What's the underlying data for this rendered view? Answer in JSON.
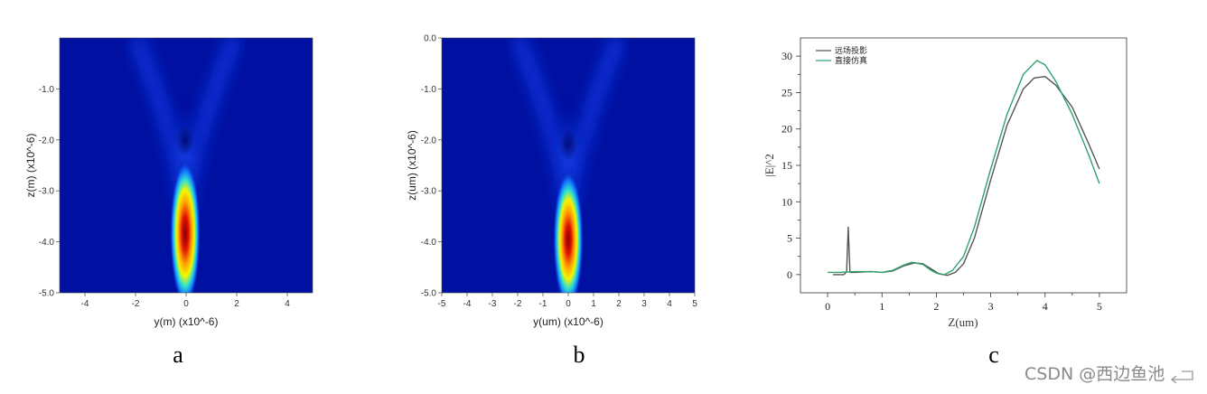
{
  "chart_data": [
    {
      "type": "heatmap",
      "panel_label": "a",
      "xlabel": "y(m) (x10^-6)",
      "ylabel": "z(m) (x10^-6)",
      "xlim": [
        -5,
        5
      ],
      "ylim": [
        -5,
        0
      ],
      "x_ticks": [
        "-4",
        "-2",
        "0",
        "2",
        "4"
      ],
      "y_ticks": [
        "-1.0",
        "-2.0",
        "-3.0",
        "-4.0",
        "-5.0"
      ],
      "colormap": "jet",
      "hotspot": {
        "y": 0.0,
        "z": -3.8,
        "peak": 1.0
      },
      "features": [
        {
          "name": "dark-lobe",
          "y": 0.0,
          "z": -2.0
        },
        {
          "name": "side-fringe-left",
          "y": -2.0,
          "z": -0.5
        },
        {
          "name": "side-fringe-right",
          "y": 2.0,
          "z": -0.5
        }
      ]
    },
    {
      "type": "heatmap",
      "panel_label": "b",
      "xlabel": "y(um) (x10^-6)",
      "ylabel": "z(um) (x10^-6)",
      "xlim": [
        -5,
        5
      ],
      "ylim": [
        -5,
        0
      ],
      "x_ticks": [
        "-5",
        "-4",
        "-3",
        "-2",
        "-1",
        "0",
        "1",
        "2",
        "3",
        "4",
        "5"
      ],
      "y_ticks": [
        "0.0",
        "-1.0",
        "-2.0",
        "-3.0",
        "-4.0",
        "-5.0"
      ],
      "colormap": "jet",
      "hotspot": {
        "y": 0.0,
        "z": -4.0,
        "peak": 1.0
      },
      "features": [
        {
          "name": "dark-lobe",
          "y": 0.0,
          "z": -2.1
        },
        {
          "name": "side-fringe-left",
          "y": -2.0,
          "z": -0.5
        },
        {
          "name": "side-fringe-right",
          "y": 2.0,
          "z": -0.5
        }
      ]
    },
    {
      "type": "line",
      "panel_label": "c",
      "xlabel": "Z(um)",
      "ylabel": "|E|^2",
      "xlim": [
        -0.5,
        5.5
      ],
      "ylim": [
        -2.5,
        32.5
      ],
      "x_ticks": [
        "0",
        "1",
        "2",
        "3",
        "4",
        "5"
      ],
      "y_ticks": [
        "0",
        "5",
        "10",
        "15",
        "20",
        "25",
        "30"
      ],
      "legend_position": "top-left",
      "series": [
        {
          "name": "远场投影",
          "color": "#555555",
          "points": [
            [
              0.1,
              0
            ],
            [
              0.3,
              0
            ],
            [
              0.35,
              0.4
            ],
            [
              0.38,
              6.5
            ],
            [
              0.41,
              0.3
            ],
            [
              0.5,
              0.3
            ],
            [
              0.8,
              0.4
            ],
            [
              1.0,
              0.3
            ],
            [
              1.2,
              0.5
            ],
            [
              1.4,
              1.2
            ],
            [
              1.6,
              1.6
            ],
            [
              1.75,
              1.5
            ],
            [
              1.9,
              0.8
            ],
            [
              2.05,
              0.1
            ],
            [
              2.2,
              -0.1
            ],
            [
              2.35,
              0.3
            ],
            [
              2.5,
              1.5
            ],
            [
              2.7,
              5
            ],
            [
              3.0,
              13
            ],
            [
              3.3,
              20.5
            ],
            [
              3.6,
              25.5
            ],
            [
              3.8,
              27
            ],
            [
              4.0,
              27.2
            ],
            [
              4.2,
              26
            ],
            [
              4.5,
              23
            ],
            [
              4.8,
              18
            ],
            [
              5.0,
              14.5
            ]
          ]
        },
        {
          "name": "直接仿真",
          "color": "#2ea36b",
          "points": [
            [
              0.0,
              0.3
            ],
            [
              0.2,
              0.3
            ],
            [
              0.5,
              0.4
            ],
            [
              0.8,
              0.4
            ],
            [
              1.0,
              0.3
            ],
            [
              1.2,
              0.6
            ],
            [
              1.4,
              1.3
            ],
            [
              1.55,
              1.7
            ],
            [
              1.75,
              1.4
            ],
            [
              1.9,
              0.6
            ],
            [
              2.0,
              0.2
            ],
            [
              2.15,
              0.0
            ],
            [
              2.3,
              0.6
            ],
            [
              2.5,
              2.5
            ],
            [
              2.7,
              6.5
            ],
            [
              3.0,
              14.5
            ],
            [
              3.3,
              22
            ],
            [
              3.6,
              27.5
            ],
            [
              3.85,
              29.4
            ],
            [
              4.0,
              28.8
            ],
            [
              4.2,
              26.5
            ],
            [
              4.5,
              22
            ],
            [
              4.8,
              16.5
            ],
            [
              5.0,
              12.5
            ]
          ]
        }
      ]
    }
  ],
  "panel_labels": {
    "a": "a",
    "b": "b",
    "c": "c"
  },
  "watermark": "CSDN @西边鱼池"
}
